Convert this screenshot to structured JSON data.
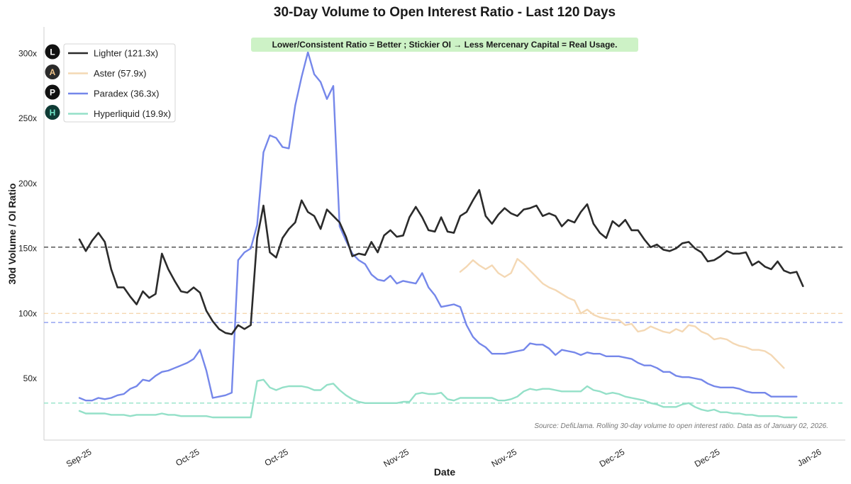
{
  "chart_data": {
    "type": "line",
    "title": "30-Day Volume to Open Interest Ratio - Last 120 Days",
    "xlabel": "Date",
    "ylabel": "30d Volume / OI Ratio",
    "ylim": [
      10,
      320
    ],
    "xlim": [
      -5,
      121
    ],
    "yticks": [
      {
        "value": 50,
        "label": "50x"
      },
      {
        "value": 100,
        "label": "100x"
      },
      {
        "value": 150,
        "label": "150x"
      },
      {
        "value": 200,
        "label": "200x"
      },
      {
        "value": 250,
        "label": "250x"
      },
      {
        "value": 300,
        "label": "300x"
      }
    ],
    "xticks": [
      {
        "x": 2,
        "label": "Sep-25"
      },
      {
        "x": 19,
        "label": "Oct-25"
      },
      {
        "x": 33,
        "label": "Oct-25"
      },
      {
        "x": 52,
        "label": "Nov-25"
      },
      {
        "x": 69,
        "label": "Nov-25"
      },
      {
        "x": 86,
        "label": "Dec-25"
      },
      {
        "x": 101,
        "label": "Dec-25"
      },
      {
        "x": 117,
        "label": "Jan-26"
      }
    ],
    "annotation": "Lower/Consistent Ratio = Better ; Stickier OI → Less Mercenary Capital = Real Usage.",
    "source_note": "Source: DefiLlama. Rolling 30-day volume to open interest ratio. Data as of January 02, 2026.",
    "legend_position": "top-left",
    "reference_lines": [
      {
        "series": "Lighter",
        "value": 151,
        "color": "#555555"
      },
      {
        "series": "Aster",
        "value": 100,
        "color": "#f5d7b0"
      },
      {
        "series": "Paradex",
        "value": 93,
        "color": "#8a9cf0"
      },
      {
        "series": "Hyperliquid",
        "value": 31,
        "color": "#94e3c8"
      }
    ],
    "series": [
      {
        "name": "Lighter",
        "label": "Lighter (121.3x)",
        "color": "#2b2b2b",
        "icon_letter": "L",
        "icon_bg": "#111111",
        "icon_fg": "#ffffff",
        "x_start": 0,
        "values": [
          157,
          148,
          156,
          162,
          155,
          134,
          120,
          120,
          113,
          107,
          117,
          112,
          115,
          146,
          134,
          125,
          117,
          116,
          120,
          116,
          102,
          94,
          88,
          85,
          84,
          91,
          88,
          91,
          158,
          183,
          147,
          143,
          158,
          165,
          170,
          187,
          178,
          175,
          165,
          180,
          175,
          170,
          159,
          144,
          146,
          145,
          155,
          147,
          160,
          164,
          159,
          160,
          174,
          182,
          174,
          164,
          163,
          174,
          163,
          162,
          175,
          178,
          187,
          195,
          175,
          169,
          176,
          181,
          177,
          175,
          180,
          181,
          183,
          175,
          177,
          175,
          167,
          172,
          170,
          178,
          184,
          169,
          162,
          158,
          171,
          167,
          172,
          164,
          164,
          157,
          151,
          153,
          149,
          148,
          150,
          154,
          155,
          150,
          147,
          140,
          141,
          144,
          148,
          146,
          146,
          147,
          137,
          140,
          136,
          134,
          140,
          133,
          131,
          132,
          121
        ]
      },
      {
        "name": "Aster",
        "label": "Aster (57.9x)",
        "color": "#f4d8b4",
        "icon_letter": "A",
        "icon_bg": "#2a2a2a",
        "icon_fg": "#f0c48a",
        "x_start": 60,
        "values": [
          132,
          136,
          141,
          137,
          134,
          137,
          131,
          128,
          131,
          142,
          138,
          133,
          128,
          123,
          120,
          118,
          115,
          112,
          110,
          100,
          103,
          99,
          97,
          96,
          95,
          95,
          91,
          92,
          86,
          87,
          90,
          88,
          86,
          85,
          88,
          86,
          91,
          90,
          86,
          84,
          80,
          81,
          80,
          77,
          75,
          74,
          72,
          72,
          71,
          68,
          63,
          58
        ]
      },
      {
        "name": "Paradex",
        "label": "Paradex (36.3x)",
        "color": "#7587ea",
        "icon_letter": "P",
        "icon_bg": "#111111",
        "icon_fg": "#ffffff",
        "x_start": 0,
        "values": [
          35,
          33,
          33,
          35,
          34,
          35,
          37,
          38,
          42,
          44,
          49,
          48,
          52,
          55,
          56,
          58,
          60,
          62,
          65,
          72,
          56,
          35,
          36,
          37,
          39,
          141,
          147,
          150,
          168,
          224,
          237,
          235,
          228,
          227,
          260,
          282,
          301,
          284,
          278,
          265,
          275,
          167,
          156,
          146,
          141,
          138,
          130,
          126,
          125,
          129,
          123,
          125,
          124,
          123,
          131,
          120,
          114,
          105,
          106,
          107,
          105,
          91,
          82,
          77,
          74,
          69,
          69,
          69,
          70,
          71,
          72,
          77,
          76,
          76,
          73,
          68,
          72,
          71,
          70,
          68,
          70,
          69,
          69,
          67,
          67,
          67,
          66,
          65,
          62,
          60,
          60,
          58,
          55,
          55,
          52,
          51,
          51,
          50,
          49,
          46,
          44,
          43,
          43,
          43,
          42,
          40,
          39,
          39,
          39,
          36,
          36,
          36,
          36,
          36
        ]
      },
      {
        "name": "Hyperliquid",
        "label": "Hyperliquid (19.9x)",
        "color": "#94e0c8",
        "icon_letter": "H",
        "icon_bg": "#0f3b35",
        "icon_fg": "#6fe3c6",
        "x_start": 0,
        "values": [
          25,
          23,
          23,
          23,
          23,
          22,
          22,
          22,
          21,
          22,
          22,
          22,
          22,
          23,
          22,
          22,
          21,
          21,
          21,
          21,
          21,
          20,
          20,
          20,
          20,
          20,
          20,
          20,
          48,
          49,
          43,
          41,
          43,
          44,
          44,
          44,
          43,
          41,
          41,
          45,
          46,
          41,
          37,
          34,
          32,
          31,
          31,
          31,
          31,
          31,
          31,
          32,
          32,
          38,
          39,
          38,
          38,
          39,
          34,
          33,
          35,
          35,
          35,
          35,
          35,
          35,
          33,
          33,
          34,
          36,
          40,
          42,
          41,
          42,
          42,
          41,
          40,
          40,
          40,
          40,
          44,
          41,
          40,
          38,
          39,
          38,
          36,
          35,
          34,
          33,
          31,
          30,
          28,
          28,
          28,
          30,
          31,
          28,
          26,
          25,
          26,
          24,
          24,
          23,
          23,
          22,
          22,
          21,
          21,
          21,
          21,
          20,
          20,
          20
        ]
      }
    ]
  }
}
